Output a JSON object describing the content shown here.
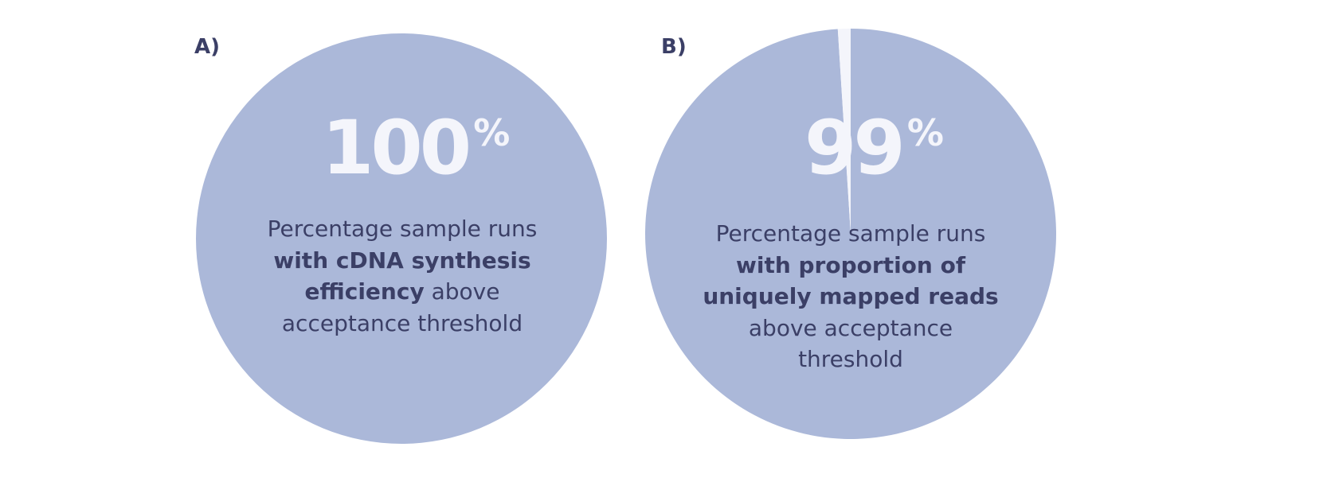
{
  "chart_data": [
    {
      "type": "pie",
      "panel_label": "A)",
      "value_percent": 100,
      "value_text": "100",
      "unit": "%",
      "caption": {
        "prefix": "Percentage sample runs",
        "bold": "with cDNA synthesis efficiency",
        "suffix": "above acceptance threshold"
      },
      "slices": [
        {
          "value": 100,
          "color": "#abb8d9"
        }
      ]
    },
    {
      "type": "pie",
      "panel_label": "B)",
      "value_percent": 99,
      "value_text": "99",
      "unit": "%",
      "caption": {
        "prefix": "Percentage sample runs",
        "bold": "with proportion of uniquely mapped reads",
        "suffix": "above acceptance threshold"
      },
      "slices": [
        {
          "value": 99,
          "color": "#abb8d9"
        },
        {
          "value": 1,
          "color": "#f4f5fb"
        }
      ]
    }
  ]
}
